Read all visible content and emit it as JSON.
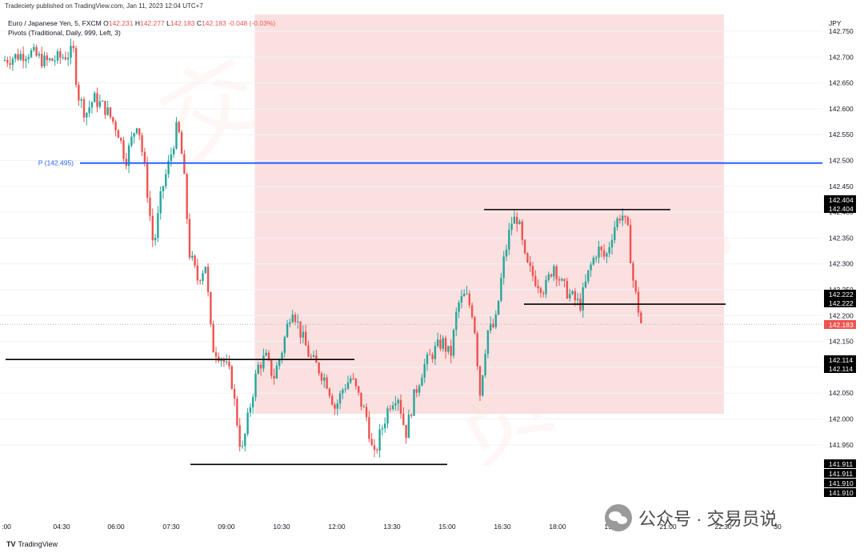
{
  "header": {
    "published": "Tradeciety published on TradingView.com, Jan 11, 2023 12:04 UTC+7",
    "symbol_line": {
      "name": "Euro / Japanese Yen, 5, FXCM",
      "open_label": "O",
      "open": "142.231",
      "high_label": "H",
      "high": "142.277",
      "low_label": "L",
      "low": "142.183",
      "close_label": "C",
      "close": "142.183",
      "change": "-0.048 (-0.03%)"
    },
    "indicator_line": "Pivots (Traditional, Daily, 999, Left, 3)"
  },
  "currency": "JPY",
  "footer": {
    "brand": "TradingView"
  },
  "watermark": {
    "text": "公众号 · 交易员说",
    "bg_chars": [
      "交",
      "易",
      "员",
      "说"
    ]
  },
  "colors": {
    "up": "#26a69a",
    "down": "#ef5350",
    "pivot": "#2962ff",
    "zone": "#fbe0e0",
    "level_line": "#000000",
    "price_tag": "#ef5350"
  },
  "chart_data": {
    "type": "candlestick",
    "symbol": "EURJPY",
    "timeframe": "5",
    "y_ticks": [
      "142.750",
      "142.700",
      "142.650",
      "142.600",
      "142.550",
      "142.500",
      "142.450",
      "142.400",
      "142.350",
      "142.300",
      "142.250",
      "142.200",
      "142.150",
      "142.100",
      "142.050",
      "142.000",
      "141.950"
    ],
    "x_ticks": [
      ":00",
      "04:30",
      "06:00",
      "07:30",
      "09:00",
      "10:30",
      "12:00",
      "13:30",
      "15:00",
      "16:30",
      "18:00",
      "19:30",
      "21:00",
      "22:30",
      "30"
    ],
    "ylim": [
      141.88,
      142.76
    ],
    "pivot": {
      "label": "P (142.495)",
      "value": 142.495
    },
    "current_price": "142.183",
    "highlight_zone": {
      "from_time": "09:45",
      "to_time": "22:30",
      "low": 142.01,
      "high": 142.76
    },
    "levels": [
      {
        "price": 142.115,
        "from": "02:50",
        "to": "12:30"
      },
      {
        "price": 141.912,
        "from": "07:50",
        "to": "15:00"
      },
      {
        "price": 142.405,
        "from": "15:45",
        "to": "20:40"
      },
      {
        "price": 142.222,
        "from": "17:00",
        "to": "22:30"
      }
    ],
    "axis_tags": [
      "142.404",
      "142.404",
      "142.222",
      "142.222",
      "142.183",
      "142.114",
      "142.114",
      "141.911",
      "141.911",
      "141.910",
      "141.910"
    ]
  }
}
